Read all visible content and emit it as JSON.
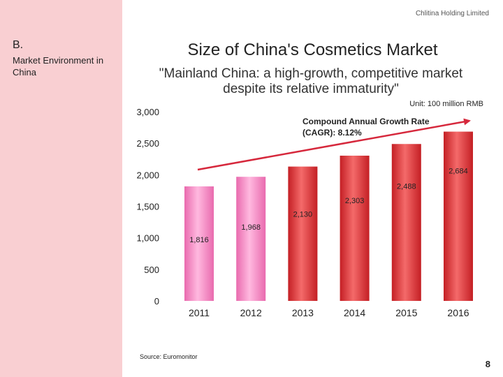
{
  "company": "Chlitina Holding Limited",
  "section": {
    "letter": "B.",
    "title": "Market Environment in China"
  },
  "page_number": "8",
  "colors": {
    "sidebar": "#f9cfd2",
    "pink_bar": "#f58fc4",
    "red_bar": "#e53b3b",
    "trend_arrow": "#d6283c"
  },
  "chart_data": {
    "type": "bar",
    "title": "Size of China's Cosmetics Market",
    "subtitle": "\"Mainland China: a high-growth, competitive market despite its relative immaturity\"",
    "unit": "Unit: 100 million RMB",
    "annotation": "Compound Annual Growth Rate (CAGR): 8.12%",
    "source": "Source: Euromonitor",
    "categories": [
      "2011",
      "2012",
      "2013",
      "2014",
      "2015",
      "2016"
    ],
    "values": [
      1816,
      1968,
      2130,
      2303,
      2488,
      2684
    ],
    "value_labels": [
      "1,816",
      "1,968",
      "2,130",
      "2,303",
      "2,488",
      "2,684"
    ],
    "yticks": [
      "0",
      "500",
      "1,000",
      "1,500",
      "2,000",
      "2,500",
      "3,000"
    ],
    "ylim": [
      0,
      3000
    ],
    "xlabel": "",
    "ylabel": "",
    "grid": false
  }
}
